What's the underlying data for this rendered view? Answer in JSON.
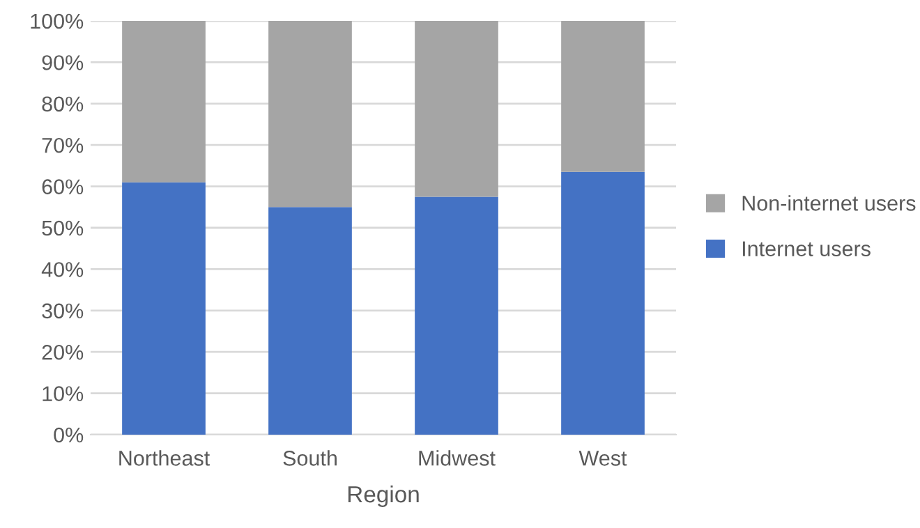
{
  "chart_data": {
    "type": "bar",
    "stacked": true,
    "xlabel": "Region",
    "categories": [
      "Northeast",
      "South",
      "Midwest",
      "West"
    ],
    "series": [
      {
        "name": "Internet users",
        "color": "#4472c4",
        "values": [
          61,
          55,
          57.5,
          63.5
        ]
      },
      {
        "name": "Non-internet users",
        "color": "#a5a5a5",
        "values": [
          39,
          45,
          42.5,
          36.5
        ]
      }
    ],
    "ylim": [
      0,
      100
    ],
    "yticks": [
      {
        "value": 0,
        "label": "0%"
      },
      {
        "value": 10,
        "label": "10%"
      },
      {
        "value": 20,
        "label": "20%"
      },
      {
        "value": 30,
        "label": "30%"
      },
      {
        "value": 40,
        "label": "40%"
      },
      {
        "value": 50,
        "label": "50%"
      },
      {
        "value": 60,
        "label": "60%"
      },
      {
        "value": 70,
        "label": "70%"
      },
      {
        "value": 80,
        "label": "80%"
      },
      {
        "value": 90,
        "label": "90%"
      },
      {
        "value": 100,
        "label": "100%"
      }
    ],
    "grid": "y",
    "legend": "right"
  }
}
